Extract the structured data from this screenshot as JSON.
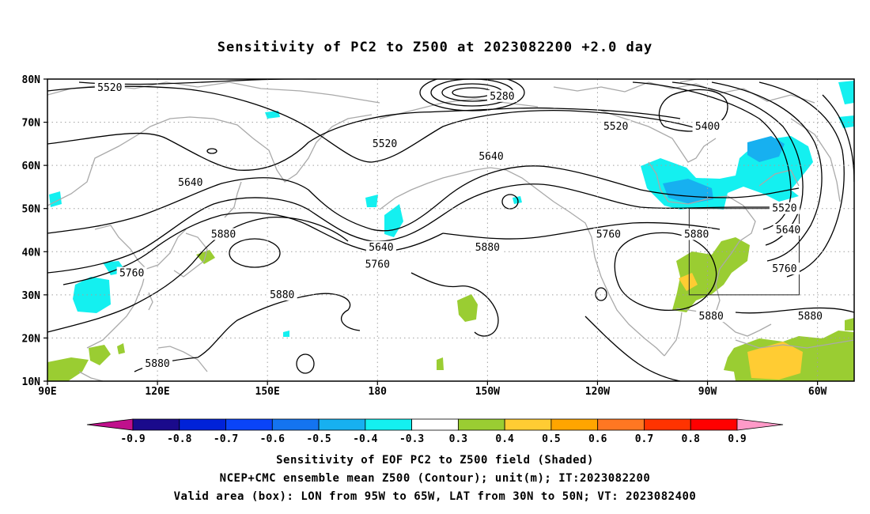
{
  "title": "Sensitivity of PC2 to Z500 at 2023082200 +2.0 day",
  "axes": {
    "lat_labels": [
      "80N",
      "70N",
      "60N",
      "50N",
      "40N",
      "30N",
      "20N",
      "10N"
    ],
    "lon_labels": [
      "90E",
      "120E",
      "150E",
      "180",
      "150W",
      "120W",
      "90W",
      "60W"
    ]
  },
  "contour_labels": [
    {
      "text": "5520",
      "lon": 107,
      "lat": 78
    },
    {
      "text": "5280",
      "lon": -146,
      "lat": 76
    },
    {
      "text": "5520",
      "lon": -178,
      "lat": 65
    },
    {
      "text": "5520",
      "lon": -115,
      "lat": 69
    },
    {
      "text": "5400",
      "lon": -90,
      "lat": 69
    },
    {
      "text": "5640",
      "lon": -149,
      "lat": 62
    },
    {
      "text": "5640",
      "lon": 129,
      "lat": 56
    },
    {
      "text": "5880",
      "lon": 138,
      "lat": 44
    },
    {
      "text": "5640",
      "lon": -179,
      "lat": 41
    },
    {
      "text": "5760",
      "lon": -180,
      "lat": 37
    },
    {
      "text": "5880",
      "lon": -150,
      "lat": 41
    },
    {
      "text": "5760",
      "lon": -117,
      "lat": 44
    },
    {
      "text": "5880",
      "lon": -93,
      "lat": 44
    },
    {
      "text": "5520",
      "lon": -69,
      "lat": 50
    },
    {
      "text": "5640",
      "lon": -68,
      "lat": 45
    },
    {
      "text": "5760",
      "lon": -69,
      "lat": 36
    },
    {
      "text": "5760",
      "lon": 113,
      "lat": 35
    },
    {
      "text": "5880",
      "lon": 154,
      "lat": 30
    },
    {
      "text": "5880",
      "lon": -89,
      "lat": 25
    },
    {
      "text": "5880",
      "lon": -62,
      "lat": 25
    },
    {
      "text": "5880",
      "lon": 120,
      "lat": 14
    }
  ],
  "colorbar": {
    "labels": [
      "-0.9",
      "-0.8",
      "-0.7",
      "-0.6",
      "-0.5",
      "-0.4",
      "-0.3",
      "0.3",
      "0.4",
      "0.5",
      "0.6",
      "0.7",
      "0.8",
      "0.9"
    ],
    "colors": [
      "#1a0a8c",
      "#0022d8",
      "#0a44f8",
      "#1474f0",
      "#17b0f0",
      "#14f0f0",
      "#ffffff",
      "#9acd32",
      "#ffcc33",
      "#ffa500",
      "#ff7722",
      "#ff3300",
      "#ff0000"
    ],
    "low_arrow_color": "#c0108c",
    "high_arrow_color": "#ff9ac8"
  },
  "valid_box": {
    "lon_from": -95,
    "lon_to": -65,
    "lat_from": 30,
    "lat_to": 50
  },
  "caption": {
    "line1": "Sensitivity of EOF PC2 to Z500 field (Shaded)",
    "line2": "NCEP+CMC ensemble mean Z500 (Contour); unit(m); IT:2023082200",
    "line3": "Valid area (box): LON from 95W to 65W, LAT from 30N to 50N; VT: 2023082400"
  }
}
